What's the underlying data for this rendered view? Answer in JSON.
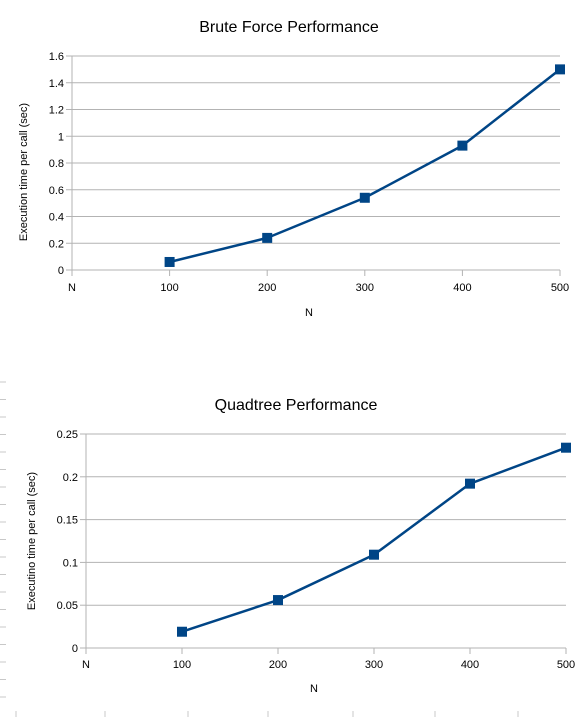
{
  "colors": {
    "series": "#004586",
    "grid": "#b3b3b3"
  },
  "chart_data": [
    {
      "type": "line",
      "title": "Brute Force Performance",
      "xlabel": "N",
      "ylabel": "Execution time per call (sec)",
      "categories": [
        "N",
        "100",
        "200",
        "300",
        "400",
        "500"
      ],
      "x": [
        100,
        200,
        300,
        400,
        500
      ],
      "values": [
        0.06,
        0.24,
        0.54,
        0.93,
        1.5
      ],
      "ylim": [
        0,
        1.6
      ],
      "yticks": [
        "0",
        "0.2",
        "0.4",
        "0.6",
        "0.8",
        "1",
        "1.2",
        "1.4",
        "1.6"
      ],
      "grid": true,
      "legend": "none"
    },
    {
      "type": "line",
      "title": "Quadtree Performance",
      "xlabel": "N",
      "ylabel": "Executino time per call (sec)",
      "categories": [
        "N",
        "100",
        "200",
        "300",
        "400",
        "500"
      ],
      "x": [
        100,
        200,
        300,
        400,
        500
      ],
      "values": [
        0.019,
        0.056,
        0.109,
        0.192,
        0.234
      ],
      "ylim": [
        0,
        0.25
      ],
      "yticks": [
        "0",
        "0.05",
        "0.1",
        "0.15",
        "0.2",
        "0.25"
      ],
      "grid": true,
      "legend": "none"
    }
  ]
}
